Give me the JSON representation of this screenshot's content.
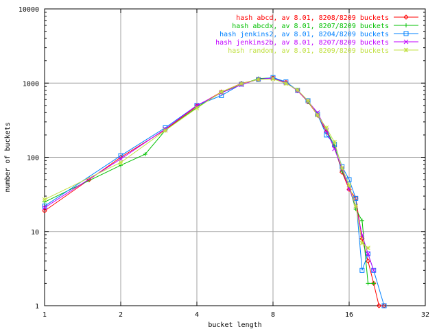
{
  "chart_data": {
    "type": "line",
    "xlabel": "bucket length",
    "ylabel": "number of buckets",
    "x_scale": "log2",
    "y_scale": "log10",
    "xlim": [
      1,
      32
    ],
    "ylim": [
      1,
      10000
    ],
    "x_ticks": [
      1,
      2,
      4,
      8,
      16,
      32
    ],
    "x_tick_labels": [
      "1",
      "2",
      "4",
      "8",
      "16",
      "32"
    ],
    "y_ticks": [
      1,
      10,
      100,
      1000,
      10000
    ],
    "y_tick_labels": [
      "1",
      "10",
      "100",
      "1000",
      "10000"
    ],
    "grid": true,
    "legend_position": "top-right",
    "series": [
      {
        "name": "hash abcd, av 8.01, 8208/8209 buckets",
        "color": "#ff0000",
        "marker": "diamond",
        "x": [
          1,
          1.5,
          2,
          3,
          4,
          5,
          6,
          7,
          8,
          9,
          10,
          11,
          12,
          13,
          14,
          15,
          16,
          17,
          18,
          19,
          20,
          21,
          22
        ],
        "y": [
          19,
          50,
          100,
          235,
          490,
          760,
          990,
          1120,
          1170,
          1020,
          790,
          560,
          370,
          220,
          140,
          63,
          37,
          28,
          8,
          4,
          2,
          1,
          1
        ]
      },
      {
        "name": "hash abcdx, av 8.01, 8207/8209 buckets",
        "color": "#00c000",
        "marker": "plus",
        "x": [
          1,
          2,
          2.5,
          3,
          4,
          5,
          6,
          7,
          8,
          9,
          10,
          11,
          12,
          13,
          14,
          15,
          16,
          17,
          18,
          19,
          20
        ],
        "y": [
          25,
          78,
          110,
          230,
          470,
          750,
          960,
          1150,
          1180,
          1000,
          810,
          560,
          390,
          240,
          140,
          65,
          40,
          20,
          14,
          2,
          2
        ]
      },
      {
        "name": "hash jenkins2, av 8.01, 8204/8209 buckets",
        "color": "#0080ff",
        "marker": "square",
        "x": [
          1,
          2,
          3,
          4,
          5,
          6,
          7,
          8,
          9,
          10,
          11,
          12,
          13,
          14,
          15,
          16,
          17,
          18,
          19,
          20,
          22
        ],
        "y": [
          22,
          105,
          250,
          500,
          680,
          970,
          1120,
          1190,
          1040,
          800,
          580,
          380,
          200,
          150,
          75,
          50,
          28,
          3,
          5,
          3,
          1
        ]
      },
      {
        "name": "hash jenkins2b, av 8.01, 8207/8209 buckets",
        "color": "#c000ff",
        "marker": "cross",
        "x": [
          1,
          2,
          3,
          4,
          5,
          6,
          7,
          8,
          9,
          10,
          11,
          12,
          13,
          14,
          15,
          16,
          17,
          18,
          19,
          20
        ],
        "y": [
          21,
          95,
          240,
          500,
          740,
          950,
          1130,
          1160,
          1010,
          790,
          570,
          400,
          230,
          130,
          70,
          38,
          22,
          9,
          5,
          3
        ]
      },
      {
        "name": "hash random, av 8.01, 8209/8209 buckets",
        "color": "#c0e040",
        "marker": "star",
        "x": [
          1,
          2,
          3,
          4,
          5,
          6,
          7,
          8,
          9,
          10,
          11,
          12,
          13,
          14,
          15,
          16,
          17,
          18,
          19
        ],
        "y": [
          27,
          85,
          230,
          460,
          760,
          980,
          1120,
          1140,
          990,
          810,
          580,
          370,
          250,
          160,
          72,
          42,
          22,
          7,
          6
        ]
      }
    ]
  }
}
